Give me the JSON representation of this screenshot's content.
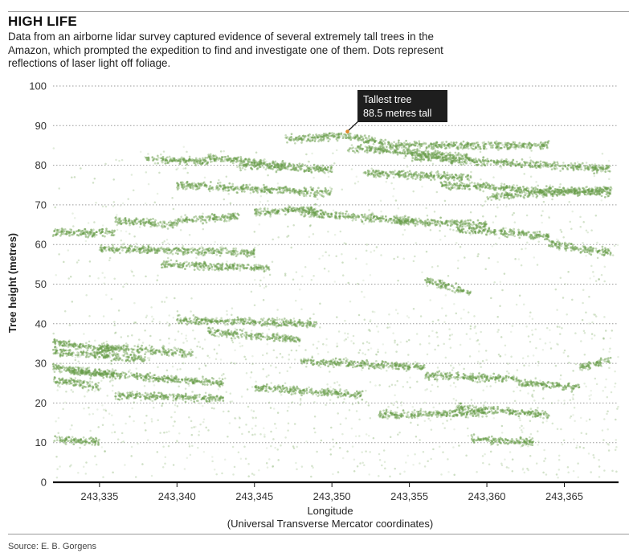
{
  "header": {
    "title": "HIGH LIFE",
    "subtitle": "Data from an airborne lidar survey captured evidence of several extremely tall trees in the Amazon, which prompted the expedition to find and investigate one of them. Dots represent reflections of laser light off foliage."
  },
  "footer": {
    "source": "Source: E. B. Gorgens"
  },
  "colors": {
    "dots": "#6a9e4c",
    "callout": "#1e1e1e",
    "marker": "#e08a2a",
    "gridline": "#9a9a9a"
  },
  "chart_data": {
    "type": "scatter",
    "title": "HIGH LIFE",
    "xlabel": "Longitude",
    "xlabel_line2": "(Universal Transverse Mercator coordinates)",
    "ylabel": "Tree height (metres)",
    "xlim": [
      243332,
      243368.5
    ],
    "ylim": [
      0,
      100
    ],
    "xticks": [
      243335,
      243340,
      243345,
      243350,
      243355,
      243360,
      243365
    ],
    "xtick_labels": [
      "243,335",
      "243,340",
      "243,345",
      "243,350",
      "243,355",
      "243,360",
      "243,365"
    ],
    "yticks": [
      0,
      10,
      20,
      30,
      40,
      50,
      60,
      70,
      80,
      90,
      100
    ],
    "grid": "horizontal-dotted",
    "annotation": {
      "line1": "Tallest tree",
      "line2": "88.5 metres tall",
      "x": 243351,
      "y": 88.5
    },
    "canopy_bands": [
      {
        "x": [
          243332,
          243336
        ],
        "y": [
          35.5,
          33
        ]
      },
      {
        "x": [
          243332,
          243338
        ],
        "y": [
          33,
          31
        ]
      },
      {
        "x": [
          243335,
          243341
        ],
        "y": [
          34,
          32.5
        ]
      },
      {
        "x": [
          243332,
          243335
        ],
        "y": [
          26,
          24
        ]
      },
      {
        "x": [
          243332,
          243336
        ],
        "y": [
          29,
          27
        ]
      },
      {
        "x": [
          243333,
          243343
        ],
        "y": [
          28,
          25
        ]
      },
      {
        "x": [
          243336,
          243343
        ],
        "y": [
          22,
          21
        ]
      },
      {
        "x": [
          243332,
          243335
        ],
        "y": [
          11,
          10
        ]
      },
      {
        "x": [
          243332,
          243336
        ],
        "y": [
          63,
          63
        ]
      },
      {
        "x": [
          243336,
          243340
        ],
        "y": [
          66,
          65
        ]
      },
      {
        "x": [
          243340,
          243344
        ],
        "y": [
          66,
          67
        ]
      },
      {
        "x": [
          243335,
          243345
        ],
        "y": [
          59,
          58
        ]
      },
      {
        "x": [
          243339,
          243346
        ],
        "y": [
          55,
          54
        ]
      },
      {
        "x": [
          243345,
          243349
        ],
        "y": [
          68,
          69
        ]
      },
      {
        "x": [
          243340,
          243350
        ],
        "y": [
          75,
          73
        ]
      },
      {
        "x": [
          243338,
          243342
        ],
        "y": [
          81.5,
          81
        ]
      },
      {
        "x": [
          243342,
          243347
        ],
        "y": [
          82,
          80
        ]
      },
      {
        "x": [
          243347,
          243351
        ],
        "y": [
          86.5,
          87.5
        ]
      },
      {
        "x": [
          243351,
          243354
        ],
        "y": [
          87.5,
          85
        ]
      },
      {
        "x": [
          243351,
          243359
        ],
        "y": [
          84.5,
          82
        ]
      },
      {
        "x": [
          243354,
          243364
        ],
        "y": [
          85,
          85
        ]
      },
      {
        "x": [
          243355,
          243368
        ],
        "y": [
          82,
          79
        ]
      },
      {
        "x": [
          243357,
          243368
        ],
        "y": [
          75,
          73
        ]
      },
      {
        "x": [
          243352,
          243359
        ],
        "y": [
          78,
          77
        ]
      },
      {
        "x": [
          243360,
          243368
        ],
        "y": [
          72,
          74
        ]
      },
      {
        "x": [
          243354,
          243360
        ],
        "y": [
          66,
          65
        ]
      },
      {
        "x": [
          243348,
          243355
        ],
        "y": [
          68,
          66
        ]
      },
      {
        "x": [
          243344,
          243350
        ],
        "y": [
          80,
          79
        ]
      },
      {
        "x": [
          243364,
          243368
        ],
        "y": [
          60,
          58
        ]
      },
      {
        "x": [
          243356,
          243359
        ],
        "y": [
          51,
          48
        ]
      },
      {
        "x": [
          243358,
          243364
        ],
        "y": [
          64,
          62
        ]
      },
      {
        "x": [
          243340,
          243349
        ],
        "y": [
          41,
          40
        ]
      },
      {
        "x": [
          243342,
          243348
        ],
        "y": [
          38,
          36
        ]
      },
      {
        "x": [
          243348,
          243356
        ],
        "y": [
          30.5,
          29
        ]
      },
      {
        "x": [
          243356,
          243362
        ],
        "y": [
          27,
          26
        ]
      },
      {
        "x": [
          243362,
          243366
        ],
        "y": [
          25,
          24
        ]
      },
      {
        "x": [
          243366,
          243368
        ],
        "y": [
          29,
          31
        ]
      },
      {
        "x": [
          243353,
          243360
        ],
        "y": [
          17,
          17.5
        ]
      },
      {
        "x": [
          243358,
          243364
        ],
        "y": [
          19,
          17
        ]
      },
      {
        "x": [
          243359,
          243363
        ],
        "y": [
          11,
          10
        ]
      },
      {
        "x": [
          243345,
          243352
        ],
        "y": [
          24,
          22
        ]
      }
    ]
  }
}
